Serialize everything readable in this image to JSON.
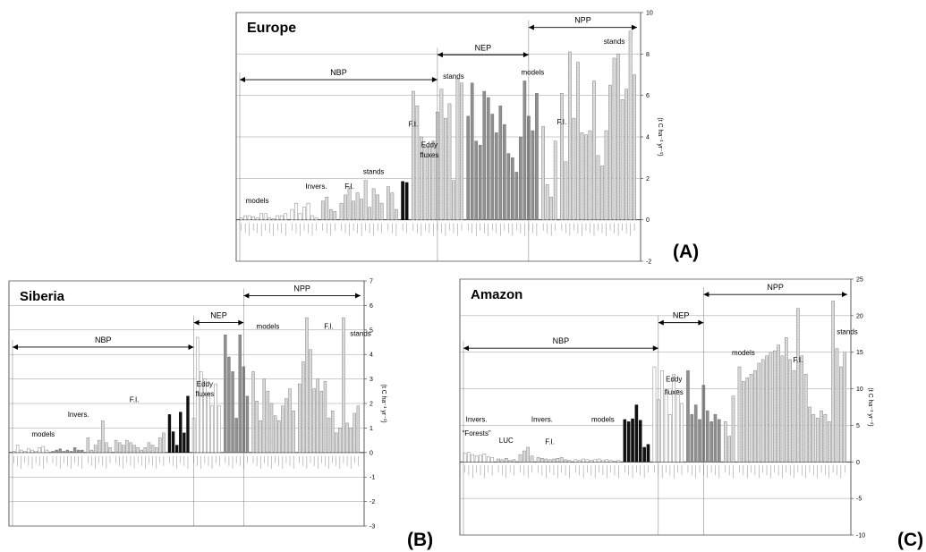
{
  "panels": {
    "A": {
      "tag": "(A)"
    },
    "B": {
      "tag": "(B)"
    },
    "C": {
      "tag": "(C)"
    }
  },
  "chart_data": [
    {
      "type": "bar",
      "title": "Europe",
      "panel": "(A)",
      "ylabel": "(t C ha⁻¹ yr⁻¹)",
      "ylim": [
        -2,
        10
      ],
      "yticks": [
        -2,
        0,
        2,
        4,
        6,
        8,
        10
      ],
      "grid": true,
      "annotations": [
        {
          "text": "NBP",
          "kind": "arrow",
          "from": 0,
          "to": 45
        },
        {
          "text": "NEP",
          "kind": "arrow",
          "from": 45,
          "to": 67
        },
        {
          "text": "NPP",
          "kind": "arrow",
          "from": 67,
          "to": 104
        },
        {
          "text": "models",
          "kind": "label",
          "x": 4,
          "y": 0.8
        },
        {
          "text": "Invers.",
          "kind": "label",
          "x": 18,
          "y": 1.5
        },
        {
          "text": "F.I.",
          "kind": "label",
          "x": 25,
          "y": 1.5
        },
        {
          "text": "stands",
          "kind": "label",
          "x": 31,
          "y": 2.2
        },
        {
          "text": "F.I.",
          "kind": "label",
          "x": 39,
          "y": 4.5
        },
        {
          "text": "Eddy",
          "kind": "label",
          "x": 43,
          "y": 3.5
        },
        {
          "text": "fluxes",
          "kind": "label",
          "x": 43,
          "y": 3.0
        },
        {
          "text": "stands",
          "kind": "label",
          "x": 49,
          "y": 6.8
        },
        {
          "text": "models",
          "kind": "label",
          "x": 68,
          "y": 7.0
        },
        {
          "text": "F.I.",
          "kind": "label",
          "x": 74,
          "y": 4.6
        },
        {
          "text": "stands",
          "kind": "label",
          "x": 87,
          "y": 8.5
        }
      ],
      "groups": [
        {
          "name": "models",
          "shade": "white",
          "values": [
            0.1,
            0.2,
            0.2,
            0.15,
            0.1,
            0.3,
            0.3,
            0.1,
            0.05,
            0.2,
            0.2,
            0.3
          ]
        },
        {
          "name": "Invers.",
          "shade": "white",
          "values": [
            0.5,
            0.8,
            0.3,
            0.6,
            0.8,
            0.2,
            0.1
          ]
        },
        {
          "name": "F.I.",
          "shade": "light",
          "values": [
            0.9,
            1.1,
            0.5,
            0.4
          ]
        },
        {
          "name": "stands",
          "shade": "light",
          "values": [
            0.8,
            1.2,
            1.6,
            0.9,
            1.3,
            1.0,
            1.9,
            0.6,
            1.5,
            1.2,
            0.8
          ]
        },
        {
          "name": "F.I.",
          "shade": "light",
          "values": [
            1.6,
            1.3,
            0.5
          ]
        },
        {
          "name": "Eddy fluxes",
          "shade": "black",
          "values": [
            1.85,
            1.8
          ]
        },
        {
          "name": "stands",
          "shade": "light",
          "values": [
            6.2,
            5.5,
            4.0,
            3.6,
            3.5,
            3.8,
            5.2,
            6.3,
            4.9,
            5.6,
            1.9,
            6.8,
            6.6
          ]
        },
        {
          "name": "models",
          "shade": "mid",
          "values": [
            5.0,
            6.6,
            3.8,
            3.6,
            6.2,
            5.9,
            5.1,
            4.2,
            5.5,
            4.6,
            3.2,
            3.0,
            2.3,
            4.0,
            6.7,
            5.0,
            4.3,
            6.1
          ]
        },
        {
          "name": "F.I.",
          "shade": "light",
          "values": [
            4.5,
            1.7,
            1.1,
            3.8
          ]
        },
        {
          "name": "stands",
          "shade": "light",
          "values": [
            6.1,
            2.8,
            8.1,
            4.9,
            7.6,
            4.2,
            4.1,
            4.3,
            6.7,
            3.1,
            2.6,
            4.3,
            6.5,
            7.8,
            8.0,
            5.8,
            6.3,
            9.1,
            7.0
          ]
        }
      ]
    },
    {
      "type": "bar",
      "title": "Siberia",
      "panel": "(B)",
      "ylabel": "(t C ha⁻¹ yr⁻¹)",
      "ylim": [
        -3,
        7
      ],
      "yticks": [
        -3,
        -2,
        -1,
        0,
        1,
        2,
        3,
        4,
        5,
        6,
        7
      ],
      "grid": true,
      "annotations": [
        {
          "text": "NBP",
          "kind": "arrow",
          "from": 0,
          "to": 46
        },
        {
          "text": "NEP",
          "kind": "arrow",
          "from": 46,
          "to": 59
        },
        {
          "text": "NPP",
          "kind": "arrow",
          "from": 59,
          "to": 106
        },
        {
          "text": "models",
          "kind": "label",
          "x": 8,
          "y": 0.65
        },
        {
          "text": "Invers.",
          "kind": "label",
          "x": 17,
          "y": 1.45
        },
        {
          "text": "F.I.",
          "kind": "label",
          "x": 31,
          "y": 2.05
        },
        {
          "text": "Eddy",
          "kind": "label",
          "x": 49,
          "y": 2.7
        },
        {
          "text": "fluxes",
          "kind": "label",
          "x": 49,
          "y": 2.3
        },
        {
          "text": "models",
          "kind": "label",
          "x": 65,
          "y": 5.05
        },
        {
          "text": "F.I.",
          "kind": "label",
          "x": 81,
          "y": 5.05
        },
        {
          "text": "stands",
          "kind": "label",
          "x": 97,
          "y": 4.75
        }
      ],
      "groups": [
        {
          "name": "models",
          "shade": "white",
          "values": [
            0.05,
            0.3,
            0.1,
            0.05,
            0.15,
            0.1,
            0.05,
            0.2,
            0.25,
            0.1
          ]
        },
        {
          "name": "models",
          "shade": "mid",
          "values": [
            0.05,
            0.1,
            0.15,
            0.05,
            0.1,
            0.05,
            0.2,
            0.1,
            0.1
          ]
        },
        {
          "name": "Invers.",
          "shade": "light",
          "values": [
            0.6,
            0.1,
            0.3,
            0.5,
            1.3,
            0.4,
            0.2
          ]
        },
        {
          "name": "F.I.",
          "shade": "light",
          "values": [
            0.5,
            0.4,
            0.3,
            0.5,
            0.4,
            0.3,
            0.2,
            0.1,
            0.2,
            0.4,
            0.3,
            0.2,
            0.6,
            0.8
          ]
        },
        {
          "name": "Eddy fluxes",
          "shade": "black",
          "values": [
            1.55,
            0.85,
            0.3,
            1.65,
            0.8,
            2.3
          ]
        },
        {
          "name": "models",
          "shade": "white",
          "values": [
            1.4,
            4.7,
            3.3,
            3.0,
            2.4,
            1.9,
            2.8,
            1.9
          ]
        },
        {
          "name": "models",
          "shade": "mid",
          "values": [
            4.8,
            3.9,
            3.3,
            1.4,
            4.8,
            3.5,
            2.3
          ]
        },
        {
          "name": "F.I.",
          "shade": "light",
          "values": [
            3.3,
            2.1,
            1.3,
            3.0,
            2.5,
            2.0,
            1.5,
            1.3,
            1.9,
            2.2,
            2.6,
            1.7
          ]
        },
        {
          "name": "stands",
          "shade": "light",
          "values": [
            2.8,
            3.7,
            5.5,
            4.2,
            2.6,
            3.0,
            2.5,
            2.9,
            1.4,
            1.7,
            0.8,
            1.0,
            5.5,
            1.2,
            1.0,
            1.6,
            1.9
          ]
        }
      ]
    },
    {
      "type": "bar",
      "title": "Amazon",
      "panel": "(C)",
      "ylabel": "(t C ha⁻¹ yr⁻¹)",
      "ylim": [
        -10,
        25
      ],
      "yticks": [
        -10,
        -5,
        0,
        5,
        10,
        15,
        20,
        25
      ],
      "grid": true,
      "annotations": [
        {
          "text": "NBP",
          "kind": "arrow",
          "from": 0,
          "to": 46
        },
        {
          "text": "NEP",
          "kind": "arrow",
          "from": 46,
          "to": 57
        },
        {
          "text": "NPP",
          "kind": "arrow",
          "from": 57,
          "to": 116
        },
        {
          "text": "Invers.",
          "kind": "label",
          "x": 3,
          "y": 5.5
        },
        {
          "text": "“Forests”",
          "kind": "label",
          "x": 3,
          "y": 3.6
        },
        {
          "text": "LUC",
          "kind": "label",
          "x": 10,
          "y": 2.6
        },
        {
          "text": "Invers.",
          "kind": "label",
          "x": 18,
          "y": 5.5
        },
        {
          "text": "F.I.",
          "kind": "label",
          "x": 20,
          "y": 2.4
        },
        {
          "text": "models",
          "kind": "label",
          "x": 33,
          "y": 5.5
        },
        {
          "text": "Eddy",
          "kind": "label",
          "x": 50,
          "y": 11.0
        },
        {
          "text": "fluxes",
          "kind": "label",
          "x": 50,
          "y": 9.2
        },
        {
          "text": "models",
          "kind": "label",
          "x": 66,
          "y": 14.6
        },
        {
          "text": "F.I.",
          "kind": "label",
          "x": 80,
          "y": 13.6
        },
        {
          "text": "stands",
          "kind": "label",
          "x": 93,
          "y": 17.5
        }
      ],
      "groups": [
        {
          "name": "Invers. Forests",
          "shade": "white",
          "values": [
            1.2,
            1.3,
            1.0,
            0.8,
            0.9,
            1.1,
            0.7,
            0.6
          ]
        },
        {
          "name": "LUC",
          "shade": "light",
          "values": [
            0.4,
            0.3,
            0.5,
            0.2,
            0.3
          ]
        },
        {
          "name": "Invers.",
          "shade": "light",
          "values": [
            1.0,
            1.5,
            2.0,
            0.8
          ]
        },
        {
          "name": "F.I.",
          "shade": "light",
          "values": [
            0.6,
            0.5,
            0.4,
            0.3,
            0.4,
            0.5,
            0.6,
            0.3,
            0.2
          ]
        },
        {
          "name": "models",
          "shade": "white",
          "values": [
            0.3,
            0.2,
            0.4,
            0.3,
            0.2,
            0.3,
            0.4,
            0.2,
            0.3,
            0.2,
            0.1,
            0.2
          ]
        },
        {
          "name": "Eddy fluxes",
          "shade": "black",
          "values": [
            5.8,
            5.5,
            5.9,
            7.8,
            5.7,
            2.0,
            2.4
          ]
        },
        {
          "name": "models",
          "shade": "white",
          "values": [
            13.0,
            8.5,
            12.5,
            9.5,
            6.5,
            12.0,
            9.8,
            8.0
          ]
        },
        {
          "name": "models",
          "shade": "mid",
          "values": [
            12.5,
            6.5,
            7.8,
            5.8,
            10.5,
            7.0,
            5.5,
            6.5,
            5.8
          ]
        },
        {
          "name": "F.I.",
          "shade": "light",
          "values": [
            5.5,
            3.5,
            9.0
          ]
        },
        {
          "name": "stands",
          "shade": "light",
          "values": [
            13.0,
            11.0,
            11.5,
            12.0,
            12.5,
            13.5,
            14.0,
            14.5,
            15.0,
            15.2,
            16.0,
            14.5,
            17.0,
            14.0,
            12.5,
            21.0,
            14.5,
            12.0,
            7.5,
            6.5,
            6.0,
            7.0,
            6.5,
            5.5,
            22.0,
            15.5,
            13.0,
            15.0
          ]
        }
      ]
    }
  ]
}
